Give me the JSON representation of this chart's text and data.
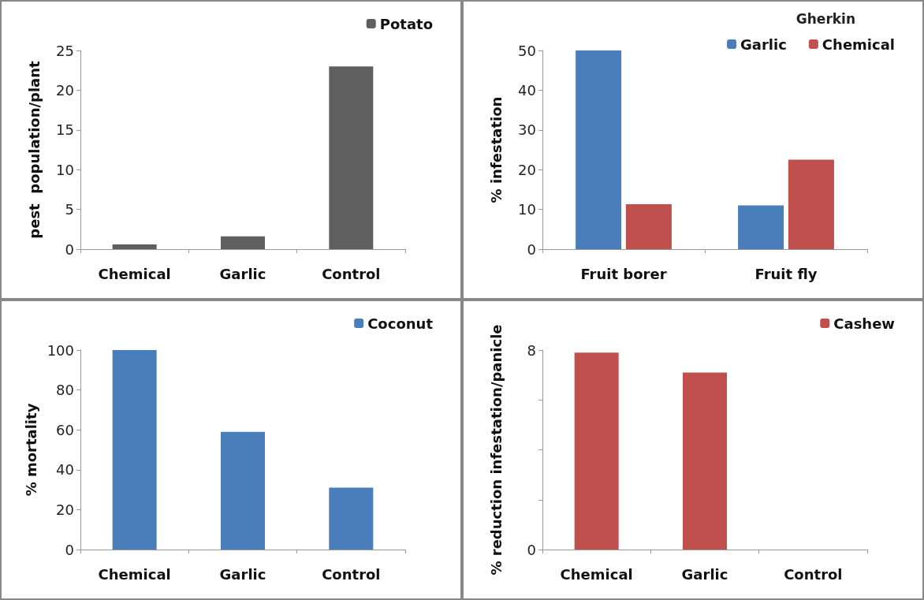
{
  "chart_data": [
    {
      "type": "bar",
      "ylabel": "pest  population/plant",
      "categories": [
        "Chemical",
        "Garlic",
        "Control"
      ],
      "series": [
        {
          "name": "Potato",
          "color": "#5f5f5f",
          "values": [
            0.6,
            1.6,
            23
          ]
        }
      ],
      "ylim": [
        0,
        25
      ],
      "yticks": [
        0,
        5,
        10,
        15,
        20,
        25
      ],
      "grid": false,
      "legend": "top right"
    },
    {
      "type": "bar",
      "ylabel": "% infestation",
      "legend_title": "Gherkin",
      "categories": [
        "Fruit borer",
        "Fruit fly"
      ],
      "series": [
        {
          "name": "Garlic",
          "color": "#4a7ebb",
          "values": [
            50,
            11
          ]
        },
        {
          "name": "Chemical",
          "color": "#c0504d",
          "values": [
            11.3,
            22.5
          ]
        }
      ],
      "ylim": [
        0,
        50
      ],
      "yticks": [
        0,
        10,
        20,
        30,
        40,
        50
      ],
      "grid": false,
      "legend": "top right"
    },
    {
      "type": "bar",
      "ylabel": "% mortality",
      "categories": [
        "Chemical",
        "Garlic",
        "Control"
      ],
      "series": [
        {
          "name": "Coconut",
          "color": "#4a7ebb",
          "values": [
            100,
            59,
            31
          ]
        }
      ],
      "ylim": [
        0,
        100
      ],
      "yticks": [
        0,
        20,
        40,
        60,
        80,
        100
      ],
      "grid": false,
      "legend": "top right"
    },
    {
      "type": "bar",
      "ylabel": "% reduction infestation/panicle",
      "categories": [
        "Chemical",
        "Garlic",
        "Control"
      ],
      "series": [
        {
          "name": "Cashew",
          "color": "#c0504d",
          "values": [
            7.9,
            7.1,
            0
          ]
        }
      ],
      "ylim": [
        0,
        8
      ],
      "yticks": [
        0,
        {
          "value": 2,
          "label": null
        },
        {
          "value": 4,
          "label": null
        },
        {
          "value": 6,
          "label": null
        },
        8
      ],
      "grid": false,
      "legend": "top right"
    }
  ]
}
